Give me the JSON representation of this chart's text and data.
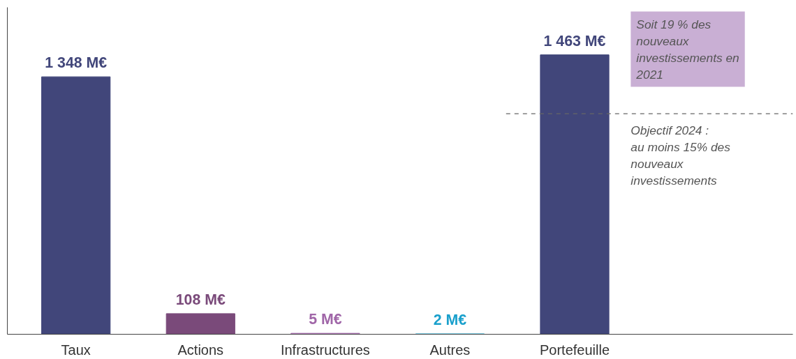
{
  "chart_data": {
    "type": "bar",
    "categories": [
      "Taux",
      "Actions",
      "Infrastructures",
      "Autres",
      "Portefeuille"
    ],
    "values": [
      1348,
      108,
      5,
      2,
      1463
    ],
    "colors": [
      "#41467a",
      "#7a4a7a",
      "#a066a8",
      "#1aa0cc",
      "#41467a"
    ],
    "value_labels": [
      "1 348 M€",
      "108 M€",
      "5 M€",
      "2 M€",
      "1 463 M€"
    ],
    "grid": false,
    "ref_lines": [
      {
        "axis": "y",
        "value": 1155,
        "label": "Objectif 2024 : au moins 15% des nouveaux investissements",
        "line_style": "dashed",
        "color": "#666666"
      }
    ],
    "annotations": [
      "Soit 19 % des nouveaux investissements en 2021"
    ]
  }
}
